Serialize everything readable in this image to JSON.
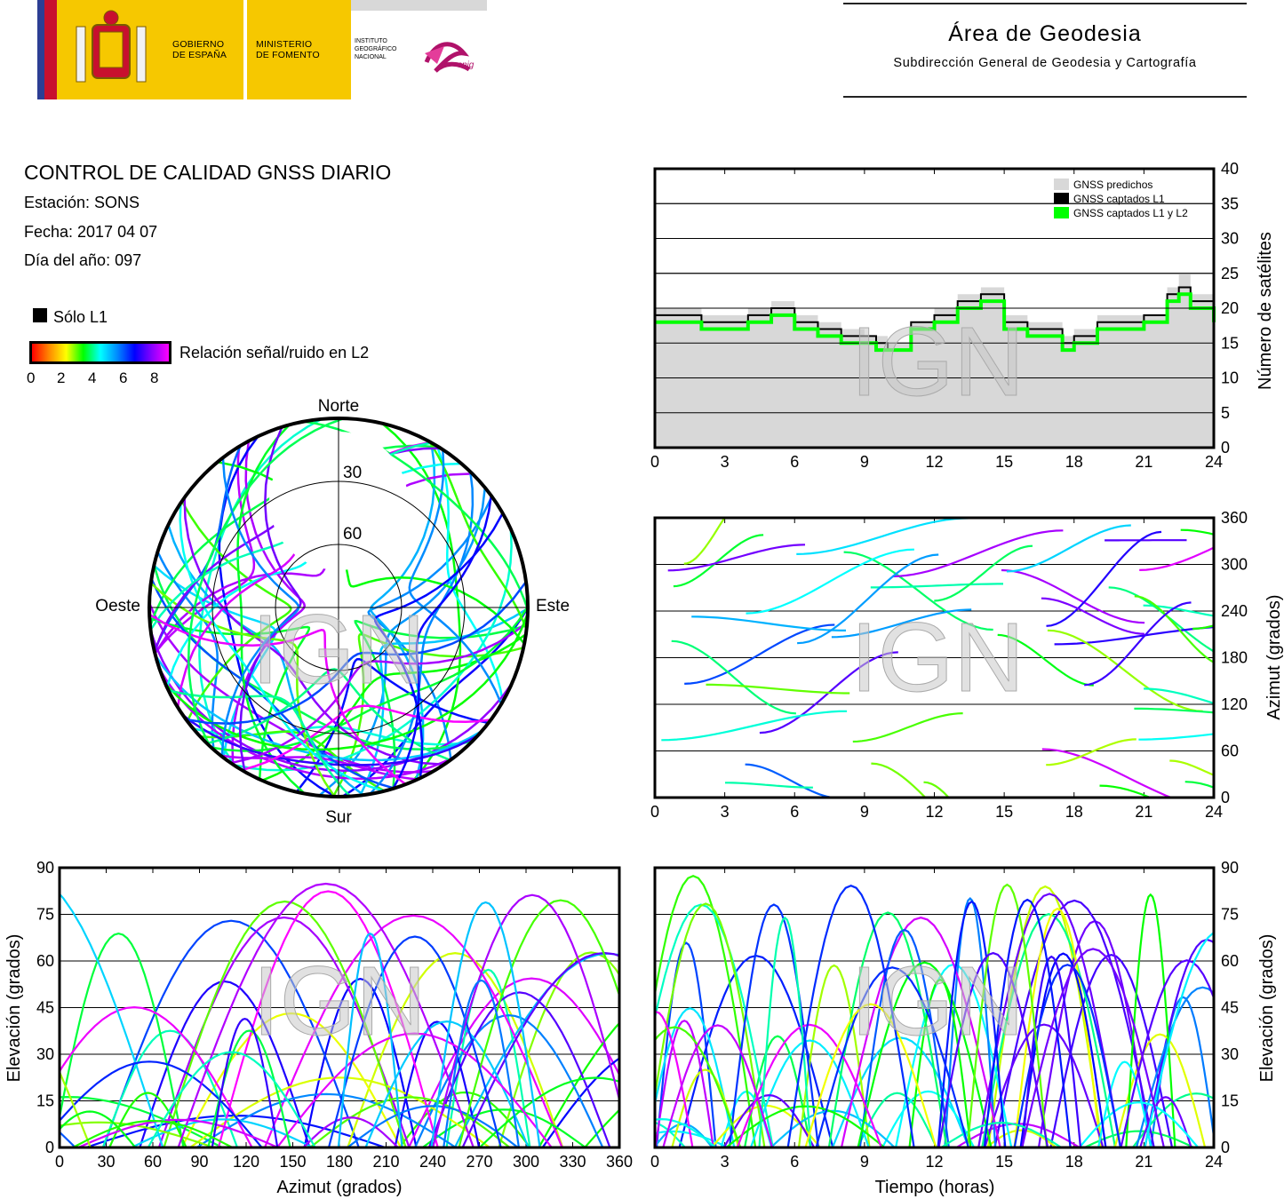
{
  "header": {
    "gobierno": "GOBIERNO\nDE ESPAÑA",
    "ministerio": "MINISTERIO\nDE FOMENTO",
    "instituto": "INSTITUTO\nGEOGRÁFICO\nNACIONAL",
    "cnig": "cnig",
    "area_title": "Área de Geodesia",
    "area_sub": "Subdirección General de Geodesia y Cartografía"
  },
  "info": {
    "title": "CONTROL DE CALIDAD GNSS DIARIO",
    "station": "Estación: SONS",
    "date": "Fecha: 2017 04 07",
    "doy": "Día del año: 097",
    "legend_l1": "Sólo L1",
    "colorbar_label": "Relación señal/ruido en L2",
    "colorbar_ticks": [
      "0",
      "2",
      "4",
      "6",
      "8"
    ]
  },
  "colors": {
    "predicted": "#d8d8d8",
    "l1": "#000000",
    "l1l2": "#00ff00",
    "watermark": "#c8c8c8"
  },
  "watermark": "IGN",
  "chart_data": [
    {
      "id": "satellite-count",
      "type": "area",
      "ylabel": "Número de satélites",
      "x_ticks": [
        "0",
        "3",
        "6",
        "9",
        "12",
        "15",
        "18",
        "21",
        "24"
      ],
      "y_ticks": [
        "0",
        "5",
        "10",
        "15",
        "20",
        "25",
        "30",
        "35",
        "40"
      ],
      "xlim": [
        0,
        24
      ],
      "ylim": [
        0,
        40
      ],
      "legend": [
        "GNSS predichos",
        "GNSS captados L1",
        "GNSS captados L1 y L2"
      ],
      "legend_position": "top-right",
      "x": [
        0,
        1,
        2,
        3,
        4,
        5,
        6,
        7,
        8,
        9,
        9.5,
        10,
        11,
        12,
        13,
        14,
        15,
        16,
        17,
        17.5,
        18,
        19,
        20,
        21,
        22,
        22.5,
        23,
        24
      ],
      "series": [
        {
          "name": "GNSS predichos",
          "values": [
            20,
            20,
            19,
            19,
            20,
            21,
            19,
            18,
            17,
            16,
            16,
            15,
            18,
            20,
            22,
            23,
            19,
            18,
            18,
            16,
            17,
            19,
            19,
            19,
            23,
            25,
            22,
            19
          ]
        },
        {
          "name": "GNSS captados L1",
          "values": [
            19,
            19,
            18,
            18,
            19,
            20,
            18,
            17,
            16,
            16,
            15,
            14,
            18,
            19,
            21,
            22,
            18,
            17,
            17,
            15,
            16,
            18,
            18,
            19,
            22,
            23,
            21,
            18
          ]
        },
        {
          "name": "GNSS captados L1 y L2",
          "values": [
            18,
            18,
            17,
            17,
            18,
            19,
            17,
            16,
            15,
            15,
            14,
            14,
            17,
            18,
            20,
            21,
            17,
            16,
            16,
            14,
            15,
            17,
            17,
            18,
            21,
            22,
            20,
            18
          ]
        }
      ]
    },
    {
      "id": "sky-plot",
      "type": "scatter",
      "directions": {
        "north": "Norte",
        "south": "Sur",
        "west": "Oeste",
        "east": "Este"
      },
      "elevation_rings": [
        "30",
        "60"
      ]
    },
    {
      "id": "azimuth-vs-time",
      "type": "scatter",
      "ylabel": "Azimut (grados)",
      "x_ticks": [
        "0",
        "3",
        "6",
        "9",
        "12",
        "15",
        "18",
        "21",
        "24"
      ],
      "y_ticks": [
        "0",
        "60",
        "120",
        "180",
        "240",
        "300",
        "360"
      ],
      "xlim": [
        0,
        24
      ],
      "ylim": [
        0,
        360
      ]
    },
    {
      "id": "elevation-vs-azimuth",
      "type": "scatter",
      "xlabel": "Azimut (grados)",
      "ylabel": "Elevación (grados)",
      "x_ticks": [
        "0",
        "30",
        "60",
        "90",
        "120",
        "150",
        "180",
        "210",
        "240",
        "270",
        "300",
        "330",
        "360"
      ],
      "y_ticks": [
        "0",
        "15",
        "30",
        "45",
        "60",
        "75",
        "90"
      ],
      "xlim": [
        0,
        360
      ],
      "ylim": [
        0,
        90
      ]
    },
    {
      "id": "elevation-vs-time",
      "type": "scatter",
      "xlabel": "Tiempo (horas)",
      "ylabel": "Elevación (grados)",
      "x_ticks": [
        "0",
        "3",
        "6",
        "9",
        "12",
        "15",
        "18",
        "21",
        "24"
      ],
      "y_ticks": [
        "0",
        "15",
        "30",
        "45",
        "60",
        "75",
        "90"
      ],
      "xlim": [
        0,
        24
      ],
      "ylim": [
        0,
        90
      ]
    }
  ]
}
